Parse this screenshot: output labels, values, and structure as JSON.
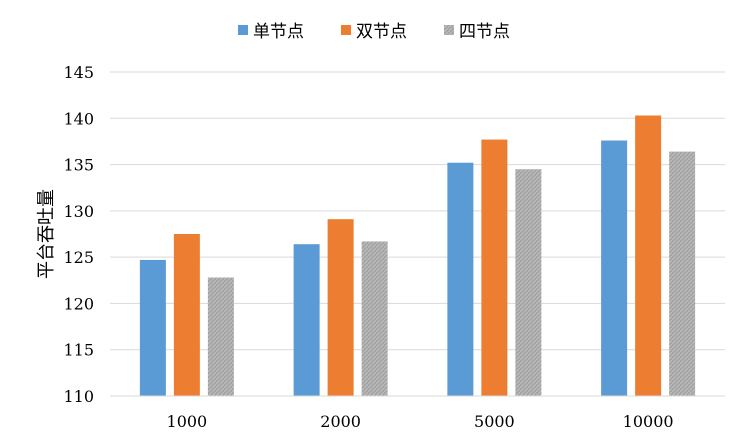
{
  "chart_data": {
    "type": "bar",
    "title": "",
    "xlabel": "",
    "ylabel": "平台吞吐量",
    "ylim": [
      110,
      145
    ],
    "yticks": [
      110,
      115,
      120,
      125,
      130,
      135,
      140,
      145
    ],
    "grid": true,
    "legend_position": "top-center",
    "categories": [
      "1000",
      "2000",
      "5000",
      "10000"
    ],
    "series": [
      {
        "name": "单节点",
        "color": "#5B9BD5",
        "values": [
          124.7,
          126.4,
          135.2,
          137.6
        ]
      },
      {
        "name": "双节点",
        "color": "#ED7D31",
        "values": [
          127.5,
          129.1,
          137.7,
          140.3
        ]
      },
      {
        "name": "四节点",
        "color": "#A5A5A5",
        "values": [
          122.8,
          126.7,
          134.5,
          136.4
        ]
      }
    ]
  }
}
